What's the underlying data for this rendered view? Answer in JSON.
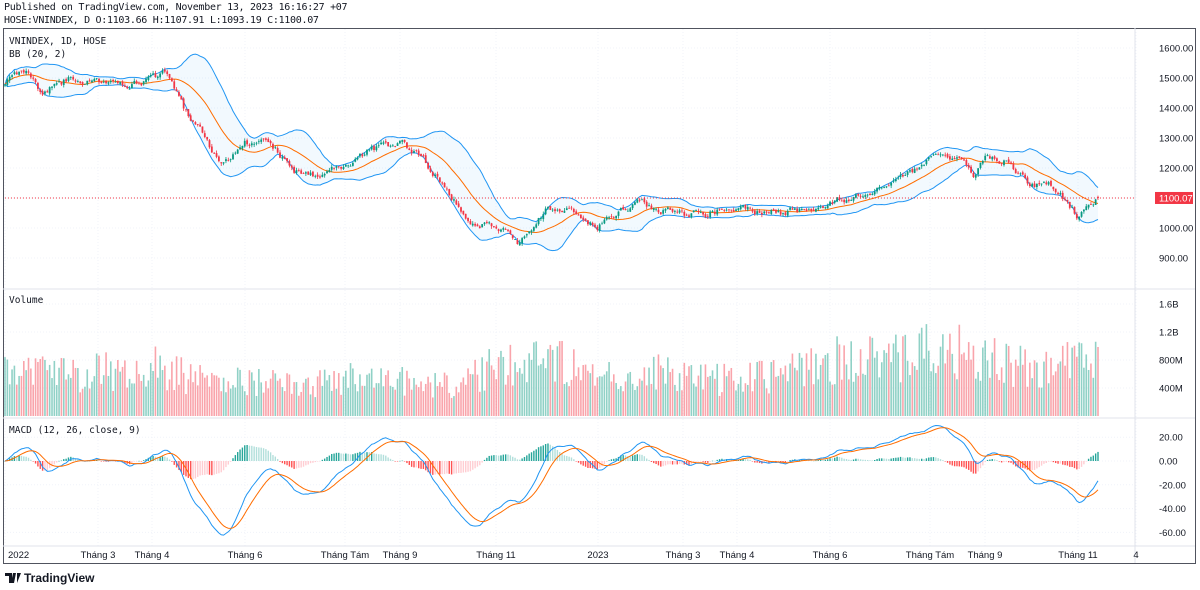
{
  "header": {
    "published": "Published on TradingView.com, November 13, 2023 16:16:27 +07",
    "ohlc": "HOSE:VNINDEX, D O:1103.66 H:1107.91 L:1093.19 C:1100.07"
  },
  "legend": {
    "symbol": "VNINDEX, 1D, HOSE",
    "bb": "BB (20, 2)",
    "volume": "Volume",
    "macd": "MACD (12, 26, close, 9)"
  },
  "brand": {
    "name": "TradingView"
  },
  "colors": {
    "up": "#089981",
    "down": "#f23645",
    "bb_band": "#2196f3",
    "bb_basis": "#ff6d00",
    "macd": "#2196f3",
    "signal": "#ff6d00",
    "last_price": "#f23645"
  },
  "chart_data": {
    "type": "candlestick",
    "symbol": "VNINDEX",
    "interval": "1D",
    "last": {
      "open": 1103.66,
      "high": 1107.91,
      "low": 1093.19,
      "close": 1100.07,
      "label": "1100.07"
    },
    "price_axis": {
      "ylim": [
        850,
        1650
      ],
      "ticks": [
        "1600.00",
        "1500.00",
        "1400.00",
        "1300.00",
        "1200.00",
        "1000.00",
        "900.00"
      ],
      "tick_values": [
        1600,
        1500,
        1400,
        1300,
        1200,
        1000,
        900
      ]
    },
    "volume_axis": {
      "ticks": [
        "1.6B",
        "1.2B",
        "800M",
        "400M"
      ],
      "tick_values_m": [
        1600,
        1200,
        800,
        400
      ]
    },
    "macd_axis": {
      "ticks": [
        "20.00",
        "0.00",
        "-20.00",
        "-40.00",
        "-60.00"
      ],
      "tick_values": [
        20,
        0,
        -20,
        -40,
        -60
      ]
    },
    "time_axis": [
      {
        "label": "2022",
        "date": "2022-01-01"
      },
      {
        "label": "Tháng 3",
        "date": "2022-03-01"
      },
      {
        "label": "Tháng 4",
        "date": "2022-04-01"
      },
      {
        "label": "Tháng 6",
        "date": "2022-06-01"
      },
      {
        "label": "Tháng Tám",
        "date": "2022-08-01"
      },
      {
        "label": "Tháng 9",
        "date": "2022-09-01"
      },
      {
        "label": "Tháng 11",
        "date": "2022-11-01"
      },
      {
        "label": "2023",
        "date": "2023-01-01"
      },
      {
        "label": "Tháng 3",
        "date": "2023-03-01"
      },
      {
        "label": "Tháng 4",
        "date": "2023-04-01"
      },
      {
        "label": "Tháng 6",
        "date": "2023-06-01"
      },
      {
        "label": "Tháng Tám",
        "date": "2023-08-01"
      },
      {
        "label": "Tháng 9",
        "date": "2023-09-01"
      },
      {
        "label": "Tháng 11",
        "date": "2023-11-01"
      },
      {
        "label": "4",
        "date": "2023-12-04"
      }
    ],
    "close_approx": [
      [
        "2022-01-01",
        1490
      ],
      [
        "2022-01-15",
        1520
      ],
      [
        "2022-01-25",
        1445
      ],
      [
        "2022-02-01",
        1470
      ],
      [
        "2022-02-15",
        1500
      ],
      [
        "2022-03-01",
        1490
      ],
      [
        "2022-03-15",
        1470
      ],
      [
        "2022-04-01",
        1500
      ],
      [
        "2022-04-10",
        1515
      ],
      [
        "2022-04-15",
        1470
      ],
      [
        "2022-04-25",
        1360
      ],
      [
        "2022-05-01",
        1330
      ],
      [
        "2022-05-15",
        1200
      ],
      [
        "2022-06-01",
        1280
      ],
      [
        "2022-06-15",
        1290
      ],
      [
        "2022-07-01",
        1190
      ],
      [
        "2022-07-15",
        1175
      ],
      [
        "2022-08-01",
        1210
      ],
      [
        "2022-08-15",
        1260
      ],
      [
        "2022-09-01",
        1280
      ],
      [
        "2022-09-15",
        1230
      ],
      [
        "2022-10-01",
        1120
      ],
      [
        "2022-10-15",
        1030
      ],
      [
        "2022-11-01",
        1010
      ],
      [
        "2022-11-15",
        945
      ],
      [
        "2022-12-01",
        1060
      ],
      [
        "2022-12-15",
        1050
      ],
      [
        "2023-01-01",
        1010
      ],
      [
        "2023-01-15",
        1060
      ],
      [
        "2023-02-01",
        1085
      ],
      [
        "2023-02-15",
        1060
      ],
      [
        "2023-03-01",
        1040
      ],
      [
        "2023-03-15",
        1050
      ],
      [
        "2023-04-01",
        1070
      ],
      [
        "2023-04-15",
        1050
      ],
      [
        "2023-05-01",
        1050
      ],
      [
        "2023-05-15",
        1070
      ],
      [
        "2023-06-01",
        1090
      ],
      [
        "2023-06-15",
        1110
      ],
      [
        "2023-07-01",
        1140
      ],
      [
        "2023-07-15",
        1170
      ],
      [
        "2023-08-01",
        1230
      ],
      [
        "2023-08-15",
        1240
      ],
      [
        "2023-08-25",
        1180
      ],
      [
        "2023-09-01",
        1235
      ],
      [
        "2023-09-15",
        1220
      ],
      [
        "2023-10-01",
        1140
      ],
      [
        "2023-10-15",
        1140
      ],
      [
        "2023-11-01",
        1040
      ],
      [
        "2023-11-13",
        1100.07
      ]
    ],
    "volume_approx_m": [
      [
        "2022-01-01",
        750
      ],
      [
        "2022-02-01",
        600
      ],
      [
        "2022-03-01",
        620
      ],
      [
        "2022-04-01",
        700
      ],
      [
        "2022-05-01",
        520
      ],
      [
        "2022-06-01",
        520
      ],
      [
        "2022-07-01",
        420
      ],
      [
        "2022-08-01",
        560
      ],
      [
        "2022-09-01",
        520
      ],
      [
        "2022-10-01",
        450
      ],
      [
        "2022-11-01",
        700
      ],
      [
        "2022-12-01",
        900
      ],
      [
        "2023-01-01",
        500
      ],
      [
        "2023-02-01",
        650
      ],
      [
        "2023-03-01",
        560
      ],
      [
        "2023-04-01",
        500
      ],
      [
        "2023-05-01",
        600
      ],
      [
        "2023-06-01",
        800
      ],
      [
        "2023-07-01",
        800
      ],
      [
        "2023-08-01",
        950
      ],
      [
        "2023-09-01",
        900
      ],
      [
        "2023-10-01",
        650
      ],
      [
        "2023-11-13",
        800
      ]
    ]
  }
}
